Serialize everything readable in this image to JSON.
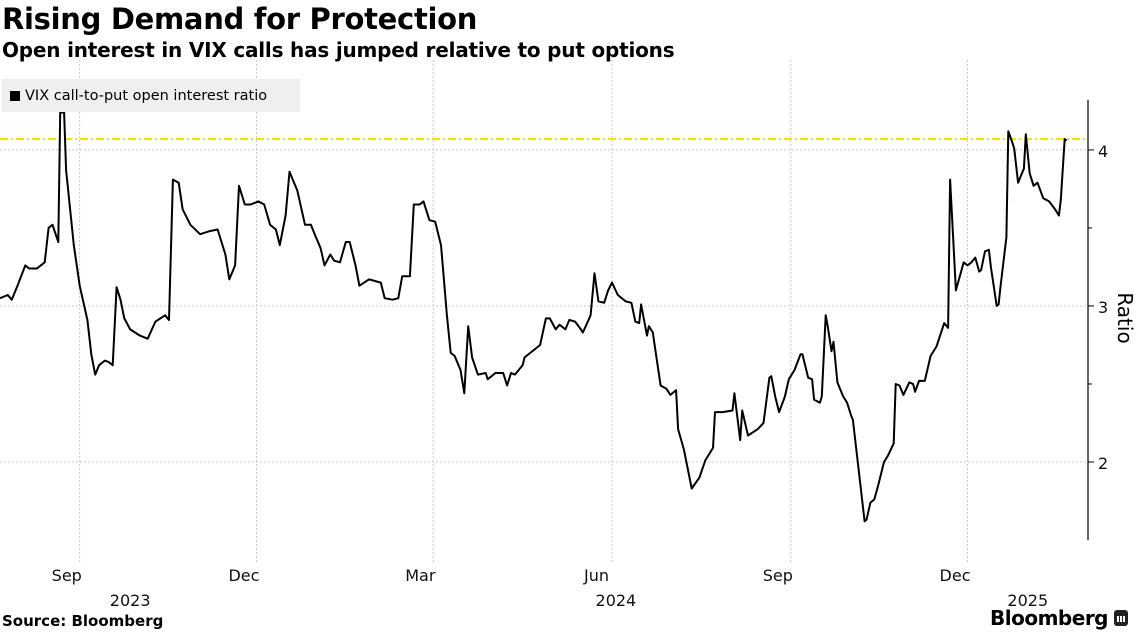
{
  "header": {
    "title": "Rising Demand for Protection",
    "subtitle": "Open interest in VIX calls has jumped relative to put options"
  },
  "footer": {
    "source": "Source: Bloomberg",
    "brand": "Bloomberg",
    "brand_icon": "bloomberg-chart-icon"
  },
  "colors": {
    "line": "#000000",
    "reference_line": "#f2e600",
    "grid": "#c8c8c8",
    "legend_bg": "#efefef"
  },
  "chart_data": {
    "type": "line",
    "title": "Rising Demand for Protection",
    "subtitle": "Open interest in VIX calls has jumped relative to put options",
    "xlabel": "",
    "ylabel": "Ratio",
    "y_axis_side": "right",
    "xlim": [
      "2023-07-22",
      "2025-02-01"
    ],
    "ylim": [
      1.5,
      4.32
    ],
    "yticks": [
      2,
      3,
      4
    ],
    "ytick_labels": [
      "2",
      "3",
      "4"
    ],
    "xticks": [
      "2023-09-01",
      "2023-12-01",
      "2024-03-01",
      "2024-06-01",
      "2024-09-01",
      "2024-12-01"
    ],
    "xtick_labels": [
      "Sep",
      "Dec",
      "Mar",
      "Jun",
      "Sep",
      "Dec"
    ],
    "year_labels": [
      "2023",
      "2024",
      "2025"
    ],
    "grid": true,
    "legend_position": "top-left",
    "reference_line": {
      "y": 4.07,
      "style": "dash-dot",
      "color": "#f2e600"
    },
    "series": [
      {
        "name": "VIX call-to-put open interest ratio",
        "color": "#000000",
        "x": [
          "2023-07-22",
          "2023-07-26",
          "2023-07-28",
          "2023-07-31",
          "2023-08-04",
          "2023-08-06",
          "2023-08-10",
          "2023-08-14",
          "2023-08-16",
          "2023-08-18",
          "2023-08-21",
          "2023-08-22",
          "2023-08-24",
          "2023-08-25",
          "2023-08-29",
          "2023-09-01",
          "2023-09-05",
          "2023-09-07",
          "2023-09-09",
          "2023-09-11",
          "2023-09-14",
          "2023-09-16",
          "2023-09-18",
          "2023-09-20",
          "2023-09-22",
          "2023-09-24",
          "2023-09-27",
          "2023-10-02",
          "2023-10-06",
          "2023-10-10",
          "2023-10-15",
          "2023-10-17",
          "2023-10-19",
          "2023-10-22",
          "2023-10-24",
          "2023-10-28",
          "2023-11-02",
          "2023-11-07",
          "2023-11-11",
          "2023-11-15",
          "2023-11-17",
          "2023-11-20",
          "2023-11-22",
          "2023-11-25",
          "2023-11-28",
          "2023-12-02",
          "2023-12-05",
          "2023-12-08",
          "2023-12-11",
          "2023-12-13",
          "2023-12-16",
          "2023-12-18",
          "2023-12-22",
          "2023-12-26",
          "2023-12-29",
          "2023-12-31",
          "2024-01-03",
          "2024-01-05",
          "2024-01-08",
          "2024-01-10",
          "2024-01-13",
          "2024-01-16",
          "2024-01-18",
          "2024-01-21",
          "2024-01-23",
          "2024-01-28",
          "2024-02-03",
          "2024-02-05",
          "2024-02-09",
          "2024-02-12",
          "2024-02-14",
          "2024-02-18",
          "2024-02-20",
          "2024-02-23",
          "2024-02-25",
          "2024-02-28",
          "2024-03-02",
          "2024-03-05",
          "2024-03-06",
          "2024-03-08",
          "2024-03-10",
          "2024-03-12",
          "2024-03-15",
          "2024-03-17",
          "2024-03-19",
          "2024-03-21",
          "2024-03-24",
          "2024-03-28",
          "2024-03-29",
          "2024-04-02",
          "2024-04-06",
          "2024-04-08",
          "2024-04-10",
          "2024-04-12",
          "2024-04-16",
          "2024-04-17",
          "2024-04-23",
          "2024-04-25",
          "2024-04-28",
          "2024-04-30",
          "2024-05-03",
          "2024-05-05",
          "2024-05-08",
          "2024-05-10",
          "2024-05-13",
          "2024-05-16",
          "2024-05-17",
          "2024-05-21",
          "2024-05-23",
          "2024-05-25",
          "2024-05-28",
          "2024-05-30",
          "2024-06-01",
          "2024-06-04",
          "2024-06-08",
          "2024-06-11",
          "2024-06-13",
          "2024-06-15",
          "2024-06-16",
          "2024-06-19",
          "2024-06-20",
          "2024-06-22",
          "2024-06-26",
          "2024-06-29",
          "2024-07-01",
          "2024-07-04",
          "2024-07-05",
          "2024-07-08",
          "2024-07-12",
          "2024-07-16",
          "2024-07-19",
          "2024-07-23",
          "2024-07-24",
          "2024-07-28",
          "2024-08-02",
          "2024-08-03",
          "2024-08-06",
          "2024-08-07",
          "2024-08-10",
          "2024-08-15",
          "2024-08-18",
          "2024-08-21",
          "2024-08-22",
          "2024-08-24",
          "2024-08-26",
          "2024-08-29",
          "2024-08-31",
          "2024-09-03",
          "2024-09-06",
          "2024-09-07",
          "2024-09-10",
          "2024-09-12",
          "2024-09-13",
          "2024-09-16",
          "2024-09-17",
          "2024-09-19",
          "2024-09-20",
          "2024-09-22",
          "2024-09-23",
          "2024-09-25",
          "2024-09-28",
          "2024-09-30",
          "2024-10-02",
          "2024-10-03",
          "2024-10-09",
          "2024-10-10",
          "2024-10-12",
          "2024-10-14",
          "2024-10-16",
          "2024-10-19",
          "2024-10-21",
          "2024-10-24",
          "2024-10-25",
          "2024-10-27",
          "2024-10-29",
          "2024-11-01",
          "2024-11-03",
          "2024-11-04",
          "2024-11-06",
          "2024-11-09",
          "2024-11-12",
          "2024-11-15",
          "2024-11-19",
          "2024-11-21",
          "2024-11-22",
          "2024-11-25",
          "2024-11-29",
          "2024-12-01",
          "2024-12-03",
          "2024-12-05",
          "2024-12-07",
          "2024-12-08",
          "2024-12-10",
          "2024-12-12",
          "2024-12-13",
          "2024-12-16",
          "2024-12-17",
          "2024-12-18",
          "2024-12-21",
          "2024-12-22",
          "2024-12-24",
          "2024-12-25",
          "2024-12-27",
          "2024-12-29",
          "2024-12-30",
          "2024-12-31",
          "2025-01-02",
          "2025-01-04",
          "2025-01-06",
          "2025-01-09",
          "2025-01-12",
          "2025-01-15",
          "2025-01-17",
          "2025-01-18",
          "2025-01-20",
          "2025-01-21"
        ],
        "y": [
          3.05,
          3.07,
          3.04,
          3.13,
          3.26,
          3.24,
          3.24,
          3.28,
          3.5,
          3.52,
          3.41,
          4.24,
          4.24,
          3.87,
          3.39,
          3.13,
          2.91,
          2.69,
          2.56,
          2.62,
          2.65,
          2.64,
          2.62,
          3.12,
          3.04,
          2.92,
          2.85,
          2.81,
          2.79,
          2.9,
          2.94,
          2.91,
          3.81,
          3.79,
          3.62,
          3.52,
          3.46,
          3.48,
          3.49,
          3.33,
          3.17,
          3.26,
          3.77,
          3.65,
          3.65,
          3.67,
          3.65,
          3.52,
          3.49,
          3.39,
          3.58,
          3.86,
          3.74,
          3.52,
          3.52,
          3.46,
          3.37,
          3.26,
          3.33,
          3.29,
          3.28,
          3.41,
          3.41,
          3.26,
          3.13,
          3.17,
          3.15,
          3.05,
          3.04,
          3.05,
          3.19,
          3.19,
          3.65,
          3.65,
          3.67,
          3.55,
          3.54,
          3.39,
          3.24,
          2.94,
          2.7,
          2.68,
          2.59,
          2.44,
          2.87,
          2.67,
          2.56,
          2.57,
          2.53,
          2.57,
          2.57,
          2.49,
          2.57,
          2.56,
          2.62,
          2.67,
          2.73,
          2.75,
          2.92,
          2.92,
          2.85,
          2.88,
          2.85,
          2.91,
          2.9,
          2.85,
          2.83,
          2.94,
          3.21,
          3.03,
          3.02,
          3.1,
          3.15,
          3.07,
          3.03,
          3.02,
          2.9,
          2.89,
          3.01,
          2.81,
          2.87,
          2.83,
          2.49,
          2.47,
          2.43,
          2.46,
          2.21,
          2.08,
          1.83,
          1.9,
          2.01,
          2.09,
          2.32,
          2.32,
          2.33,
          2.44,
          2.14,
          2.33,
          2.17,
          2.21,
          2.25,
          2.54,
          2.55,
          2.42,
          2.32,
          2.42,
          2.53,
          2.59,
          2.69,
          2.69,
          2.54,
          2.53,
          2.4,
          2.38,
          2.42,
          2.94,
          2.87,
          2.71,
          2.77,
          2.51,
          2.42,
          2.38,
          2.3,
          2.27,
          1.62,
          1.63,
          1.74,
          1.76,
          1.85,
          2.0,
          2.04,
          2.12,
          2.5,
          2.49,
          2.43,
          2.51,
          2.5,
          2.45,
          2.52,
          2.52,
          2.68,
          2.74,
          2.89,
          2.86,
          3.81,
          3.1,
          3.28,
          3.26,
          3.28,
          3.31,
          3.22,
          3.23,
          3.35,
          3.36,
          3.25,
          3.0,
          3.01,
          3.13,
          3.44,
          4.12,
          4.05,
          4.01,
          3.79,
          3.85,
          3.88,
          4.1,
          3.85,
          3.77,
          3.79,
          3.69,
          3.67,
          3.62,
          3.58,
          3.68,
          4.07,
          4.06
        ]
      }
    ]
  }
}
